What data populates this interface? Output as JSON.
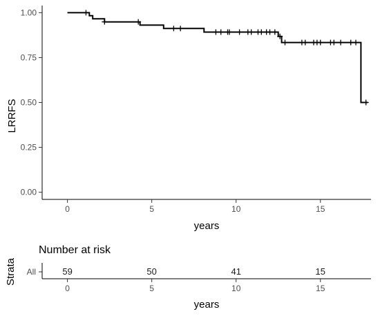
{
  "chart_data": [
    {
      "type": "line",
      "subtype": "kaplan-meier step curve",
      "xlabel": "years",
      "ylabel": "LRRFS",
      "xlim": [
        -1.5,
        18.0
      ],
      "ylim": [
        -0.04,
        1.04
      ],
      "x_ticks": [
        0,
        5,
        10,
        15
      ],
      "y_ticks": [
        0.0,
        0.25,
        0.5,
        0.75,
        1.0
      ],
      "y_tick_labels": [
        "0.00",
        "0.25",
        "0.50",
        "0.75",
        "1.00"
      ],
      "grid": false,
      "step_points": [
        {
          "x": 0.0,
          "y": 1.0
        },
        {
          "x": 1.3,
          "y": 0.983
        },
        {
          "x": 1.5,
          "y": 0.966
        },
        {
          "x": 2.2,
          "y": 0.949
        },
        {
          "x": 4.3,
          "y": 0.931
        },
        {
          "x": 5.7,
          "y": 0.912
        },
        {
          "x": 8.1,
          "y": 0.892
        },
        {
          "x": 12.5,
          "y": 0.868
        },
        {
          "x": 12.7,
          "y": 0.834
        },
        {
          "x": 17.4,
          "y": 0.5
        },
        {
          "x": 17.8,
          "y": 0.5
        }
      ],
      "censor_times": [
        1.1,
        2.2,
        4.2,
        6.3,
        6.7,
        8.8,
        9.1,
        9.5,
        9.6,
        10.2,
        10.7,
        10.9,
        11.3,
        11.5,
        11.8,
        12.0,
        12.3,
        12.6,
        12.9,
        13.9,
        14.1,
        14.6,
        14.8,
        15.0,
        15.6,
        15.8,
        16.2,
        16.8,
        17.1,
        17.7
      ]
    },
    {
      "type": "table",
      "title": "Number at risk",
      "ylabel": "Strata",
      "xlabel": "years",
      "strata": [
        "All"
      ],
      "x_ticks": [
        0,
        5,
        10,
        15
      ],
      "times": [
        0,
        5,
        10,
        15
      ],
      "counts": [
        59,
        50,
        41,
        15
      ]
    }
  ]
}
